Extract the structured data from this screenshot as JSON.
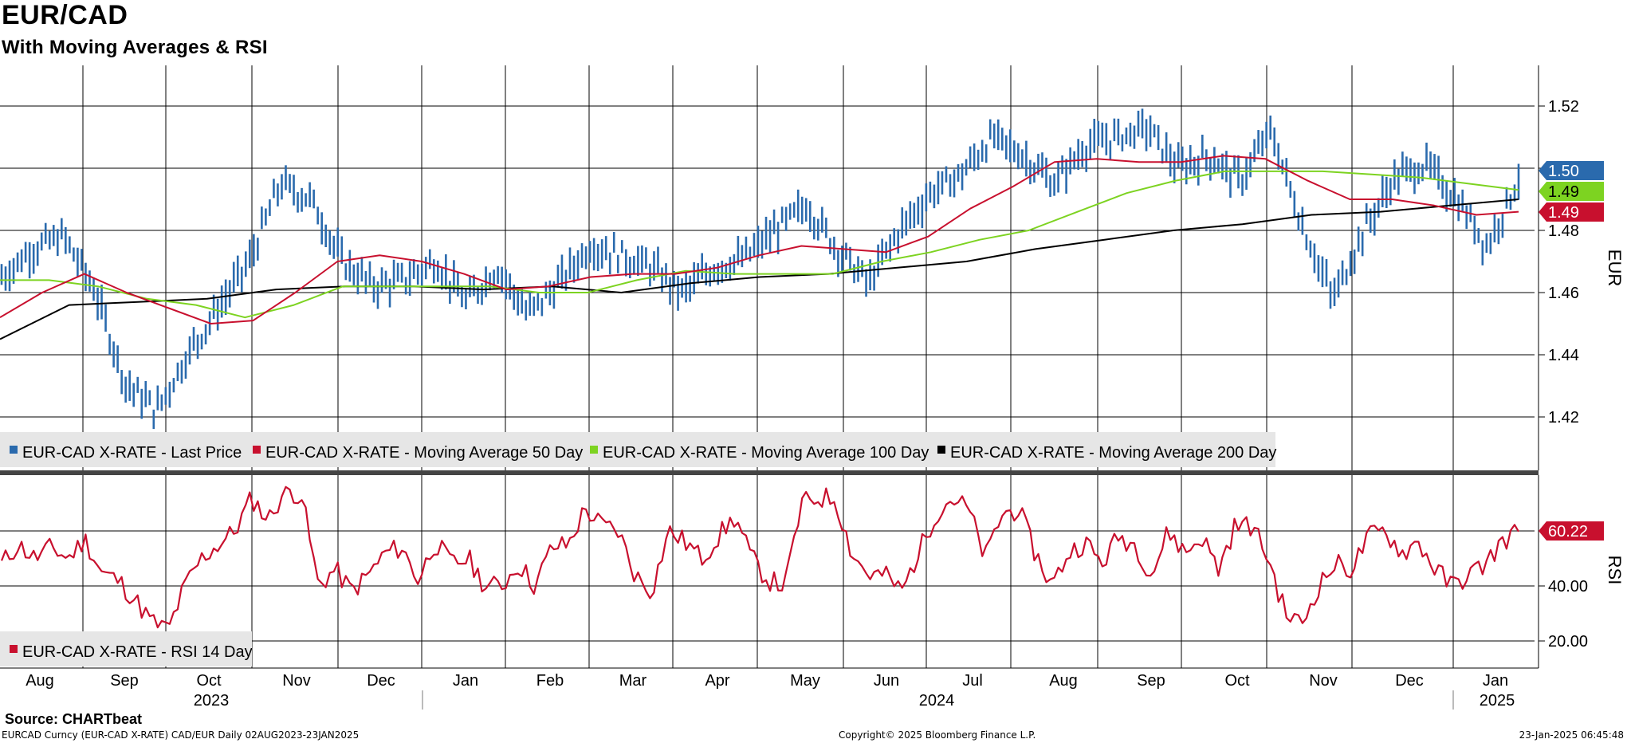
{
  "header": {
    "title": "EUR/CAD",
    "subtitle": "With Moving Averages & RSI"
  },
  "footer": {
    "source": "Source: CHARTbeat",
    "security": "EURCAD Curncy (EUR-CAD X-RATE) CAD/EUR  Daily 02AUG2023-23JAN2025",
    "copyright": "Copyright© 2025 Bloomberg Finance L.P.",
    "timestamp": "23-Jan-2025 06:45:48"
  },
  "colors": {
    "price": "#2a6aad",
    "ma50": "#c8102e",
    "ma100": "#7dd321",
    "ma200": "#000000",
    "rsi": "#c8102e"
  },
  "chart_data": [
    {
      "type": "line",
      "panel": "price",
      "y_axis_label": "EUR",
      "ylim": [
        1.4,
        1.53
      ],
      "y_ticks": [
        "1.42",
        "1.44",
        "1.46",
        "1.48",
        "1.50",
        "1.52"
      ],
      "x_month_labels": [
        "Aug",
        "Sep",
        "Oct",
        "Nov",
        "Dec",
        "Jan",
        "Feb",
        "Mar",
        "Apr",
        "May",
        "Jun",
        "Jul",
        "Aug",
        "Sep",
        "Oct",
        "Nov",
        "Dec",
        "Jan"
      ],
      "x_year_labels": [
        "2023",
        "2024",
        "2025"
      ],
      "last_value_labels": {
        "price": "1.50",
        "ma100": "1.49",
        "ma50": "1.49"
      },
      "legend": [
        "EUR-CAD X-RATE - Last Price",
        "EUR-CAD X-RATE - Moving Average 50 Day",
        "EUR-CAD X-RATE - Moving Average 100 Day",
        "EUR-CAD X-RATE - Moving Average 200 Day"
      ],
      "x_months_from_aug2023": [
        0,
        0.5,
        1,
        1.5,
        2,
        2.5,
        3,
        3.5,
        4,
        4.5,
        5,
        5.5,
        6,
        6.5,
        7,
        7.5,
        8,
        8.5,
        9,
        9.5,
        10,
        10.5,
        11,
        11.5,
        12,
        12.5,
        13,
        13.5,
        14,
        14.5,
        15,
        15.5,
        16,
        16.5,
        17,
        17.5
      ],
      "series": [
        {
          "name": "Last Price",
          "values": [
            1.465,
            1.474,
            1.478,
            1.461,
            1.431,
            1.422,
            1.44,
            1.455,
            1.47,
            1.495,
            1.49,
            1.47,
            1.462,
            1.464,
            1.47,
            1.457,
            1.468,
            1.453,
            1.463,
            1.475,
            1.472,
            1.468,
            1.46,
            1.468,
            1.471,
            1.48,
            1.488,
            1.474,
            1.463,
            1.48,
            1.492,
            1.498,
            1.51,
            1.504,
            1.495,
            1.507,
            1.51,
            1.513,
            1.5,
            1.504,
            1.496,
            1.512,
            1.482,
            1.458,
            1.48,
            1.497,
            1.501,
            1.49,
            1.475,
            1.497
          ]
        },
        {
          "name": "Moving Average 50 Day",
          "values": [
            1.452,
            1.46,
            1.466,
            1.46,
            1.455,
            1.45,
            1.451,
            1.46,
            1.47,
            1.472,
            1.47,
            1.466,
            1.461,
            1.462,
            1.465,
            1.466,
            1.466,
            1.468,
            1.472,
            1.475,
            1.474,
            1.473,
            1.478,
            1.487,
            1.494,
            1.502,
            1.503,
            1.502,
            1.502,
            1.504,
            1.503,
            1.496,
            1.49,
            1.49,
            1.488,
            1.485,
            1.486
          ]
        },
        {
          "name": "Moving Average 100 Day",
          "values": [
            1.464,
            1.464,
            1.462,
            1.458,
            1.456,
            1.452,
            1.456,
            1.462,
            1.462,
            1.462,
            1.462,
            1.46,
            1.46,
            1.464,
            1.467,
            1.466,
            1.466,
            1.466,
            1.47,
            1.473,
            1.477,
            1.48,
            1.486,
            1.492,
            1.496,
            1.499,
            1.499,
            1.499,
            1.498,
            1.497,
            1.495,
            1.493
          ]
        },
        {
          "name": "Moving Average 200 Day",
          "values": [
            1.445,
            1.456,
            1.457,
            1.458,
            1.461,
            1.462,
            1.462,
            1.461,
            1.462,
            1.46,
            1.463,
            1.465,
            1.466,
            1.468,
            1.47,
            1.474,
            1.477,
            1.48,
            1.482,
            1.485,
            1.486,
            1.488,
            1.49
          ]
        }
      ]
    },
    {
      "type": "line",
      "panel": "rsi",
      "y_axis_label": "RSI",
      "ylim": [
        10,
        80
      ],
      "y_ticks": [
        "20.00",
        "40.00"
      ],
      "last_value_label": "60.22",
      "legend": [
        "EUR-CAD X-RATE - RSI 14 Day"
      ],
      "series": [
        {
          "name": "RSI 14 Day",
          "values": [
            48,
            55,
            50,
            54,
            50,
            57,
            45,
            42,
            35,
            27,
            24,
            40,
            50,
            55,
            60,
            72,
            64,
            75,
            73,
            40,
            46,
            38,
            44,
            52,
            54,
            42,
            56,
            48,
            50,
            40,
            40,
            48,
            40,
            54,
            55,
            68,
            62,
            60,
            44,
            38,
            60,
            56,
            50,
            58,
            65,
            50,
            42,
            40,
            70,
            72,
            72,
            52,
            44,
            44,
            38,
            52,
            66,
            72,
            68,
            50,
            66,
            68,
            52,
            40,
            52,
            56,
            48,
            58,
            55,
            44,
            60,
            52,
            58,
            46,
            62,
            62,
            50,
            30,
            26,
            40,
            48,
            46,
            58,
            60,
            52,
            56,
            46,
            40,
            44,
            48,
            56,
            60
          ]
        }
      ]
    }
  ]
}
